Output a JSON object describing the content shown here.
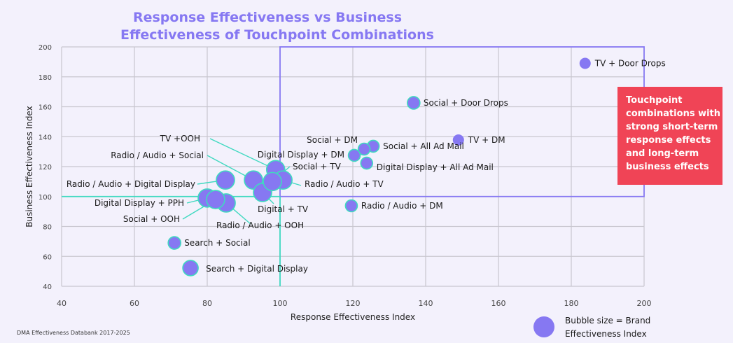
{
  "chart_data": {
    "type": "scatter",
    "subtype": "bubble",
    "title": "Response Effectiveness vs Business Effectiveness of Touchpoint Combinations",
    "title_lines": [
      "Response Effectiveness vs Business",
      "Effectiveness of Touchpoint Combinations"
    ],
    "xlabel": "Response Effectiveness Index",
    "ylabel": "Business Effectiveness Index",
    "xlim": [
      40,
      200
    ],
    "ylim": [
      40,
      200
    ],
    "xticks": [
      40,
      60,
      80,
      100,
      120,
      140,
      160,
      180,
      200
    ],
    "yticks": [
      40,
      60,
      80,
      100,
      120,
      140,
      160,
      180,
      200
    ],
    "grid": true,
    "reference_lines": {
      "x": 100,
      "y": 100
    },
    "highlight_region": {
      "x": [
        100,
        200
      ],
      "y": [
        100,
        200
      ]
    },
    "size_legend": "Bubble size = Brand Effectiveness Index",
    "size_legend_lines": [
      "Bubble size = Brand",
      "Effectiveness Index"
    ],
    "callout": "Touchpoint combinations with strong short-term response effects and long-term business effects",
    "callout_lines": [
      "Touchpoint",
      "combinations with",
      "strong short-term",
      "response effects",
      "and long-term",
      "business effects"
    ],
    "source": "DMA Effectiveness Databank 2017-2025",
    "points": [
      {
        "label": "TV + Door Drops",
        "x": 183.8,
        "y": 189,
        "size": 8,
        "outline": false
      },
      {
        "label": "Social + Door Drops",
        "x": 136.7,
        "y": 162.6,
        "size": 9,
        "outline": true
      },
      {
        "label": "TV + DM",
        "x": 149,
        "y": 137.8,
        "size": 8,
        "outline": false
      },
      {
        "label": "Social + All Ad Mail",
        "x": 125.6,
        "y": 133.6,
        "size": 8.5,
        "outline": true
      },
      {
        "label": "Social + DM",
        "x": 123.1,
        "y": 131.7,
        "size": 8.5,
        "outline": true
      },
      {
        "label": "Digital Display + DM",
        "x": 120.4,
        "y": 127.5,
        "size": 8.5,
        "outline": true
      },
      {
        "label": "Digital Display + All Ad Mail",
        "x": 123.8,
        "y": 122.3,
        "size": 8.5,
        "outline": true
      },
      {
        "label": "Radio / Audio + DM",
        "x": 119.6,
        "y": 93.8,
        "size": 8.5,
        "outline": true
      },
      {
        "label": "TV +OOH",
        "x": 98.8,
        "y": 118,
        "size": 13,
        "outline": true
      },
      {
        "label": "Radio / Audio + Social",
        "x": 92.7,
        "y": 111,
        "size": 13,
        "outline": true
      },
      {
        "label": "Radio / Audio + TV",
        "x": 100.8,
        "y": 111,
        "size": 13,
        "outline": true
      },
      {
        "label": "Digital + TV",
        "x": 95.2,
        "y": 102.7,
        "size": 13,
        "outline": true
      },
      {
        "label": "Social + TV",
        "x": 97.9,
        "y": 110,
        "size": 13,
        "outline": true
      },
      {
        "label": "Radio / Audio + Digital Display",
        "x": 85,
        "y": 111,
        "size": 13,
        "outline": true
      },
      {
        "label": "Digital Display + PPH",
        "x": 80,
        "y": 99,
        "size": 13,
        "outline": true
      },
      {
        "label": "Radio / Audio + OOH",
        "x": 85.2,
        "y": 95.7,
        "size": 13,
        "outline": true
      },
      {
        "label": "Social + OOH",
        "x": 82.3,
        "y": 98,
        "size": 13,
        "outline": true
      },
      {
        "label": "Search + Social",
        "x": 71,
        "y": 69,
        "size": 9,
        "outline": true
      },
      {
        "label": "Search + Digital Display",
        "x": 75.4,
        "y": 52.2,
        "size": 11,
        "outline": true
      }
    ]
  },
  "colors": {
    "bubble": "#8678f2",
    "outline": "#3fd9c0",
    "highlight_box": "#8678f2",
    "callout_bg": "#f04456",
    "title": "#8678f2",
    "grid": "#c8c6cf"
  }
}
